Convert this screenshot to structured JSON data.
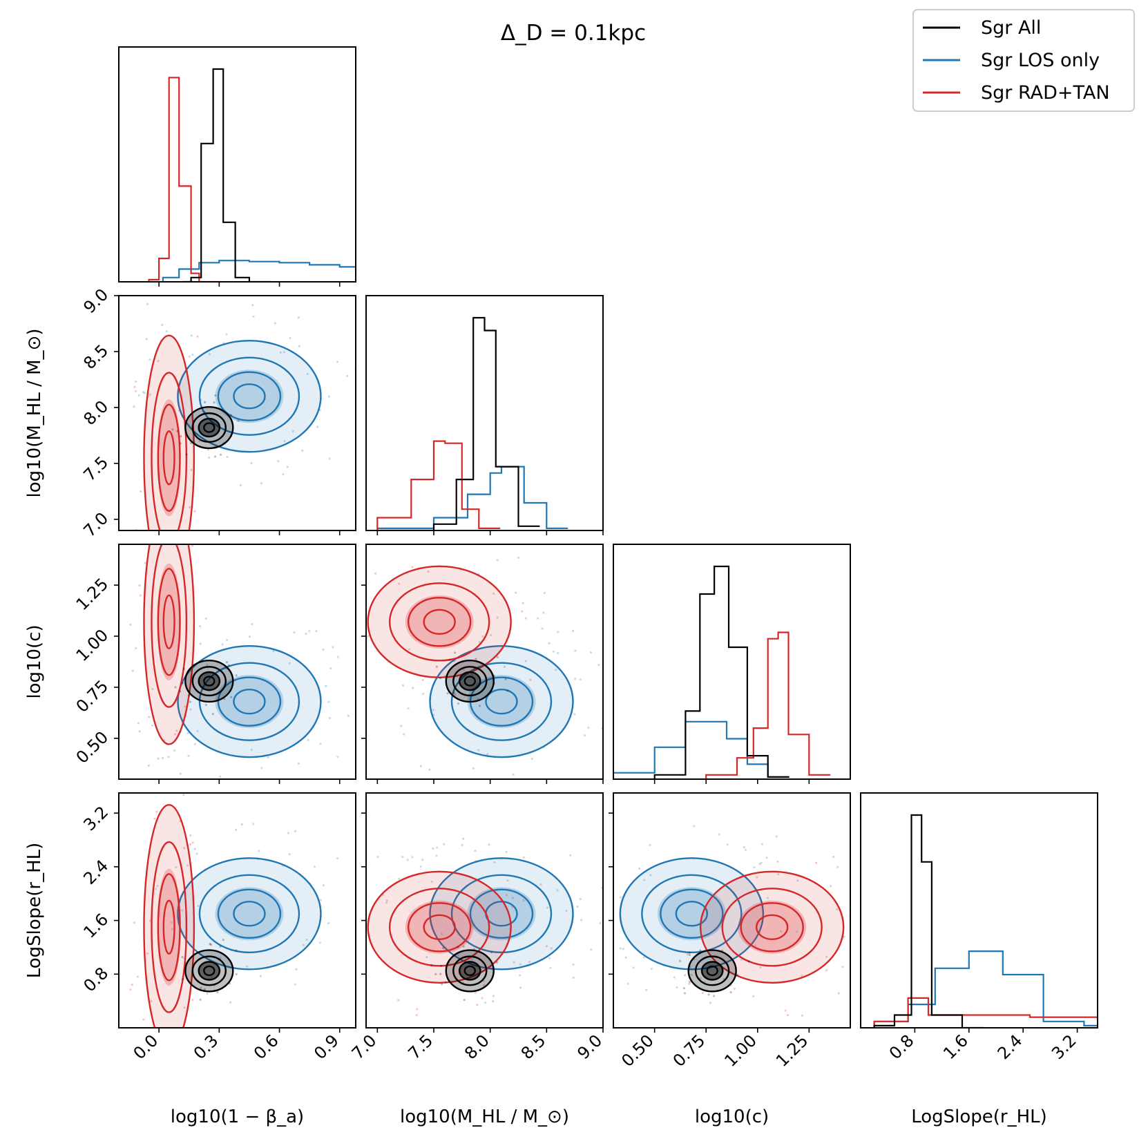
{
  "chart_data": {
    "type": "corner",
    "title": "Δ_D = 0.1kpc",
    "legend": {
      "placement": "top-right",
      "entries": [
        {
          "label": "Sgr All",
          "color": "#000000"
        },
        {
          "label": "Sgr LOS only",
          "color": "#1f77b4"
        },
        {
          "label": "Sgr RAD+TAN",
          "color": "#d62728"
        }
      ]
    },
    "parameters": [
      {
        "key": "beta",
        "label": "log10(1 − β_a)",
        "range": [
          -0.2,
          0.98
        ],
        "ticks": [
          0.0,
          0.3,
          0.6,
          0.9
        ],
        "tick_labels": [
          "0.0",
          "0.3",
          "0.6",
          "0.9"
        ]
      },
      {
        "key": "mass",
        "label": "log10(M_HL / M_⊙)",
        "range": [
          6.9,
          9.0
        ],
        "ticks": [
          7.0,
          7.5,
          8.0,
          8.5,
          9.0
        ],
        "tick_labels": [
          "7.0",
          "7.5",
          "8.0",
          "8.5",
          "9.0"
        ]
      },
      {
        "key": "c",
        "label": "log10(c)",
        "range": [
          0.3,
          1.45
        ],
        "ticks": [
          0.5,
          0.75,
          1.0,
          1.25
        ],
        "tick_labels": [
          "0.50",
          "0.75",
          "1.00",
          "1.25"
        ]
      },
      {
        "key": "slope",
        "label": "LogSlope(r_HL)",
        "range": [
          0.0,
          3.5
        ],
        "ticks": [
          0.8,
          1.6,
          2.4,
          3.2
        ],
        "tick_labels": [
          "0.8",
          "1.6",
          "2.4",
          "3.2"
        ]
      }
    ],
    "histograms": {
      "beta": {
        "Sgr All": [
          [
            0.12,
            0.0
          ],
          [
            0.16,
            0.02
          ],
          [
            0.21,
            0.65
          ],
          [
            0.27,
            1.0
          ],
          [
            0.32,
            0.28
          ],
          [
            0.38,
            0.02
          ],
          [
            0.45,
            0.0
          ]
        ],
        "Sgr LOS only": [
          [
            0.02,
            0.02
          ],
          [
            0.1,
            0.06
          ],
          [
            0.2,
            0.09
          ],
          [
            0.3,
            0.1
          ],
          [
            0.45,
            0.095
          ],
          [
            0.6,
            0.09
          ],
          [
            0.75,
            0.08
          ],
          [
            0.9,
            0.07
          ],
          [
            0.98,
            0.06
          ]
        ],
        "Sgr RAD+TAN": [
          [
            -0.05,
            0.01
          ],
          [
            0.0,
            0.11
          ],
          [
            0.05,
            0.96
          ],
          [
            0.1,
            0.45
          ],
          [
            0.16,
            0.04
          ],
          [
            0.2,
            0.0
          ]
        ]
      },
      "mass": {
        "Sgr All": [
          [
            7.0,
            0.0
          ],
          [
            7.5,
            0.03
          ],
          [
            7.7,
            0.24
          ],
          [
            7.85,
            1.0
          ],
          [
            7.95,
            0.94
          ],
          [
            8.05,
            0.3
          ],
          [
            8.25,
            0.02
          ]
        ],
        "Sgr LOS only": [
          [
            7.0,
            0.01
          ],
          [
            7.5,
            0.06
          ],
          [
            7.8,
            0.17
          ],
          [
            8.0,
            0.27
          ],
          [
            8.1,
            0.3
          ],
          [
            8.3,
            0.13
          ],
          [
            8.5,
            0.01
          ]
        ],
        "Sgr RAD+TAN": [
          [
            7.0,
            0.06
          ],
          [
            7.3,
            0.24
          ],
          [
            7.5,
            0.42
          ],
          [
            7.6,
            0.41
          ],
          [
            7.75,
            0.1
          ],
          [
            7.9,
            0.01
          ]
        ]
      },
      "c": {
        "Sgr All": [
          [
            0.5,
            0.02
          ],
          [
            0.65,
            0.32
          ],
          [
            0.72,
            0.87
          ],
          [
            0.79,
            1.0
          ],
          [
            0.86,
            0.62
          ],
          [
            0.95,
            0.11
          ],
          [
            1.05,
            0.01
          ]
        ],
        "Sgr LOS only": [
          [
            0.3,
            0.03
          ],
          [
            0.5,
            0.15
          ],
          [
            0.65,
            0.27
          ],
          [
            0.75,
            0.27
          ],
          [
            0.85,
            0.19
          ],
          [
            0.95,
            0.07
          ],
          [
            1.05,
            0.01
          ]
        ],
        "Sgr RAD+TAN": [
          [
            0.75,
            0.02
          ],
          [
            0.9,
            0.1
          ],
          [
            0.98,
            0.24
          ],
          [
            1.05,
            0.66
          ],
          [
            1.1,
            0.69
          ],
          [
            1.15,
            0.21
          ],
          [
            1.25,
            0.02
          ]
        ]
      },
      "slope": {
        "Sgr All": [
          [
            0.2,
            0.01
          ],
          [
            0.5,
            0.06
          ],
          [
            0.75,
            1.0
          ],
          [
            0.9,
            0.78
          ],
          [
            1.05,
            0.06
          ],
          [
            1.5,
            0.0
          ]
        ],
        "Sgr LOS only": [
          [
            0.2,
            0.03
          ],
          [
            0.7,
            0.11
          ],
          [
            1.1,
            0.28
          ],
          [
            1.6,
            0.36
          ],
          [
            2.1,
            0.25
          ],
          [
            2.7,
            0.03
          ],
          [
            3.3,
            0.01
          ]
        ],
        "Sgr RAD+TAN": [
          [
            0.2,
            0.03
          ],
          [
            0.7,
            0.14
          ],
          [
            1.0,
            0.06
          ],
          [
            1.5,
            0.06
          ],
          [
            2.5,
            0.05
          ],
          [
            3.5,
            0.04
          ]
        ]
      }
    },
    "contour_centers": {
      "Sgr All": {
        "beta": 0.25,
        "mass": 7.82,
        "c": 0.78,
        "slope": 0.85
      },
      "Sgr LOS only": {
        "beta": 0.45,
        "mass": 8.1,
        "c": 0.68,
        "slope": 1.7
      },
      "Sgr RAD+TAN": {
        "beta": 0.05,
        "mass": 7.55,
        "c": 1.07,
        "slope": 1.5
      }
    }
  }
}
